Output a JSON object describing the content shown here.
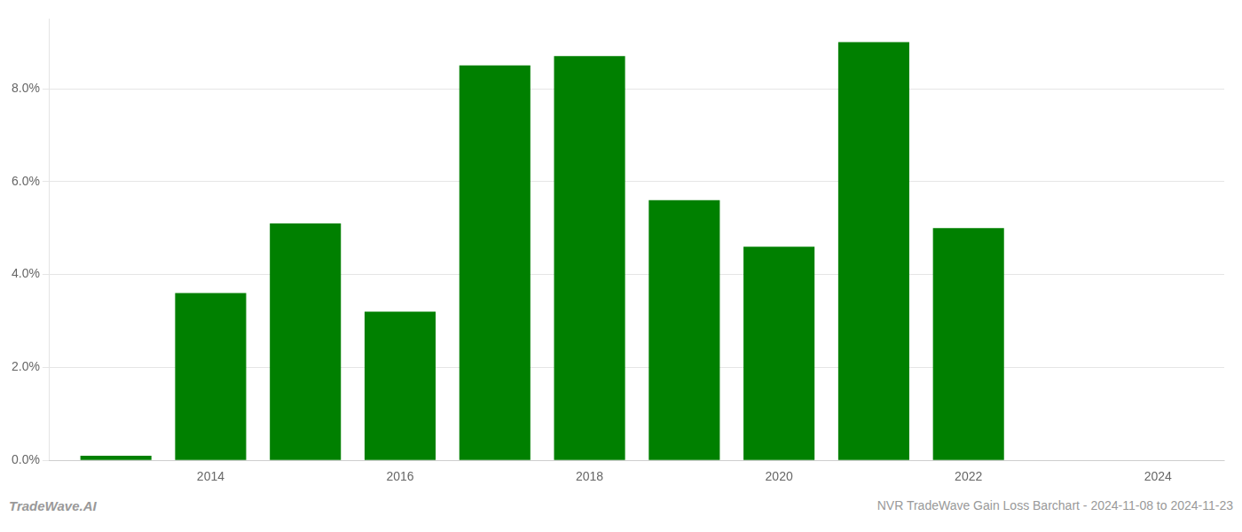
{
  "chart_data": {
    "type": "bar",
    "x": [
      2013,
      2014,
      2015,
      2016,
      2017,
      2018,
      2019,
      2020,
      2021,
      2022
    ],
    "values": [
      0.001,
      0.036,
      0.051,
      0.032,
      0.085,
      0.087,
      0.056,
      0.046,
      0.09,
      0.05
    ],
    "color": "#008000",
    "xlim": [
      2012.3,
      2024.7
    ],
    "xticks": [
      2014,
      2016,
      2018,
      2020,
      2022,
      2024
    ],
    "ylim": [
      0,
      0.095
    ],
    "yticks": [
      {
        "value": 0.0,
        "label": "0.0%"
      },
      {
        "value": 0.02,
        "label": "2.0%"
      },
      {
        "value": 0.04,
        "label": "4.0%"
      },
      {
        "value": 0.06,
        "label": "6.0%"
      },
      {
        "value": 0.08,
        "label": "8.0%"
      }
    ],
    "grid": true,
    "annotations": [
      "TradeWave.AI",
      "NVR TradeWave Gain Loss Barchart - 2024-11-08 to 2024-11-23"
    ]
  }
}
